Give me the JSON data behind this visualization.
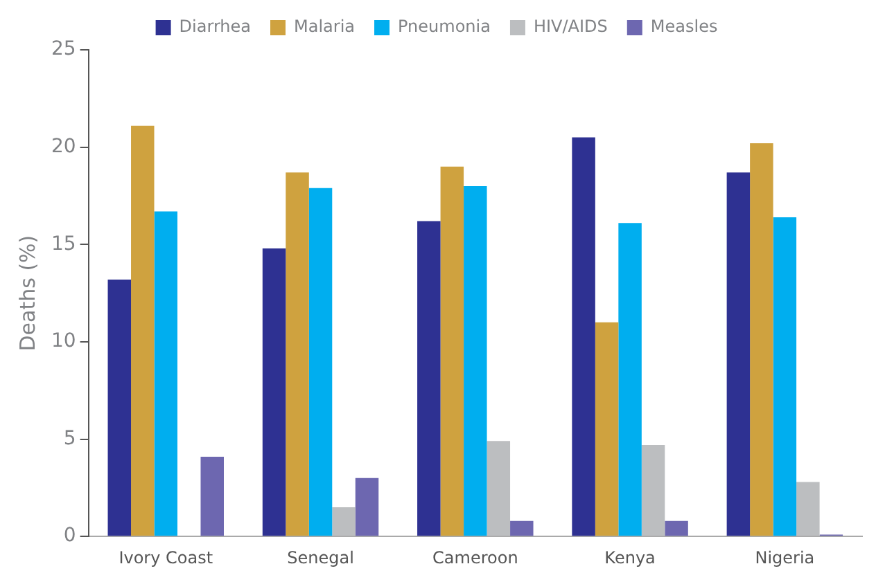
{
  "chart_data": {
    "type": "bar",
    "ylabel": "Deaths (%)",
    "categories": [
      "Ivory Coast",
      "Senegal",
      "Cameroon",
      "Kenya",
      "Nigeria"
    ],
    "series": [
      {
        "name": "Diarrhea",
        "color": "#2e3192",
        "values": [
          13.2,
          14.8,
          16.2,
          20.5,
          18.7
        ]
      },
      {
        "name": "Malaria",
        "color": "#cfa23f",
        "values": [
          21.1,
          18.7,
          19.0,
          11.0,
          20.2
        ]
      },
      {
        "name": "Pneumonia",
        "color": "#00aeef",
        "values": [
          16.7,
          17.9,
          18.0,
          16.1,
          16.4
        ]
      },
      {
        "name": "HIV/AIDS",
        "color": "#bcbec0",
        "values": [
          null,
          1.5,
          4.9,
          4.7,
          2.8
        ]
      },
      {
        "name": "Measles",
        "color": "#6d67b0",
        "values": [
          4.1,
          3.0,
          0.8,
          0.8,
          0.1
        ]
      }
    ],
    "ylim": [
      0,
      25
    ],
    "yticks": [
      0,
      5,
      10,
      15,
      20,
      25
    ],
    "grid": false,
    "legend": "top"
  }
}
